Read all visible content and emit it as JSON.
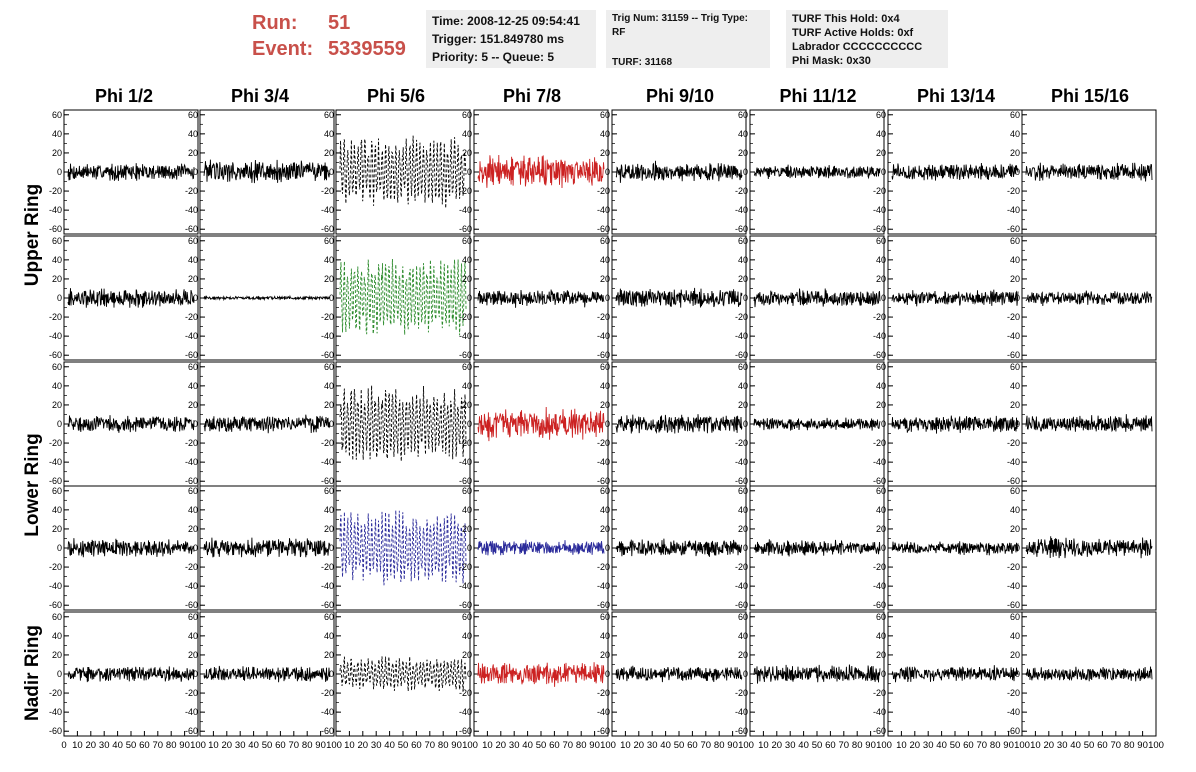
{
  "header": {
    "run_label": "Run:",
    "run_value": "51",
    "event_label": "Event:",
    "event_value": "5339559",
    "info1": [
      "Time: 2008-12-25 09:54:41",
      "Trigger: 151.849780 ms",
      "Priority: 5 -- Queue: 5"
    ],
    "info2": [
      "Trig Num: 31159 -- Trig Type: RF",
      "TURF: 31168"
    ],
    "info3": [
      "TURF This Hold: 0x4",
      "TURF Active Holds: 0xf",
      "Labrador CCCCCCCCCC",
      "Phi Mask: 0x30"
    ]
  },
  "colors": {
    "black": "#000000",
    "red": "#cc2222",
    "green": "#2a8a2a",
    "blue": "#2a2a9a",
    "run_text": "#c8504a",
    "box_bg": "#eeeeee"
  },
  "chart_data": {
    "type": "line",
    "columns": [
      "Phi 1/2",
      "Phi 3/4",
      "Phi 5/6",
      "Phi 7/8",
      "Phi 9/10",
      "Phi 11/12",
      "Phi 13/14",
      "Phi 15/16"
    ],
    "rows": [
      {
        "label": "Upper Ring",
        "span": 2
      },
      {
        "label": "Lower Ring",
        "span": 2
      },
      {
        "label": "Nadir Ring",
        "span": 1
      }
    ],
    "ylim": [
      -65,
      65
    ],
    "yticks": [
      -60,
      -40,
      -20,
      0,
      20,
      40,
      60
    ],
    "xlim": [
      0,
      100
    ],
    "xticks": [
      0,
      10,
      20,
      30,
      40,
      50,
      60,
      70,
      80,
      90,
      100
    ],
    "panels": [
      [
        {
          "c": "black",
          "a": 16
        },
        {
          "c": "black",
          "a": 22
        },
        {
          "c": "black",
          "a": 32,
          "dash": true
        },
        {
          "c": "red",
          "a": 30
        },
        {
          "c": "black",
          "a": 18
        },
        {
          "c": "black",
          "a": 12
        },
        {
          "c": "black",
          "a": 16
        },
        {
          "c": "black",
          "a": 16
        }
      ],
      [
        {
          "c": "black",
          "a": 18
        },
        {
          "c": "black",
          "a": 3
        },
        {
          "c": "green",
          "a": 36,
          "dash": true
        },
        {
          "c": "black",
          "a": 16
        },
        {
          "c": "black",
          "a": 18
        },
        {
          "c": "black",
          "a": 16
        },
        {
          "c": "black",
          "a": 14
        },
        {
          "c": "black",
          "a": 14
        }
      ],
      [
        {
          "c": "black",
          "a": 16
        },
        {
          "c": "black",
          "a": 16
        },
        {
          "c": "black",
          "a": 34,
          "dash": true
        },
        {
          "c": "red",
          "a": 28
        },
        {
          "c": "black",
          "a": 18
        },
        {
          "c": "black",
          "a": 12
        },
        {
          "c": "black",
          "a": 16
        },
        {
          "c": "black",
          "a": 16
        }
      ],
      [
        {
          "c": "black",
          "a": 16
        },
        {
          "c": "black",
          "a": 18
        },
        {
          "c": "blue",
          "a": 34,
          "dash": true
        },
        {
          "c": "blue",
          "a": 14
        },
        {
          "c": "black",
          "a": 16
        },
        {
          "c": "black",
          "a": 14
        },
        {
          "c": "black",
          "a": 12
        },
        {
          "c": "black",
          "a": 18
        }
      ],
      [
        {
          "c": "black",
          "a": 14
        },
        {
          "c": "black",
          "a": 14
        },
        {
          "c": "black",
          "a": 16,
          "dash": true
        },
        {
          "c": "red",
          "a": 22
        },
        {
          "c": "black",
          "a": 14
        },
        {
          "c": "black",
          "a": 16
        },
        {
          "c": "black",
          "a": 14
        },
        {
          "c": "black",
          "a": 14
        }
      ]
    ]
  }
}
